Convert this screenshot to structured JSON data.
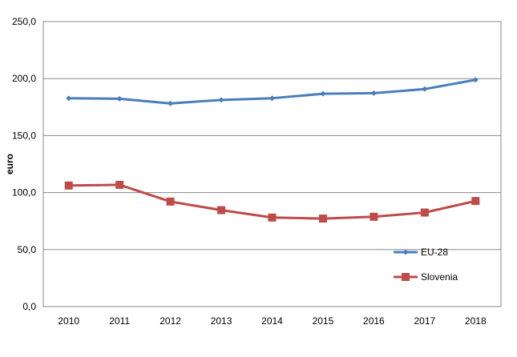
{
  "chart_data": {
    "type": "line",
    "title": "",
    "xlabel": "",
    "ylabel": "euro",
    "x": [
      "2010",
      "2011",
      "2012",
      "2013",
      "2014",
      "2015",
      "2016",
      "2017",
      "2018"
    ],
    "ylim": [
      0,
      250
    ],
    "yticks": [
      "0,0",
      "50,0",
      "100,0",
      "150,0",
      "200,0",
      "250,0"
    ],
    "grid": true,
    "legend_position": "lower-right",
    "series": [
      {
        "name": "EU-28",
        "color": "#4a7ebb",
        "marker": "diamond",
        "values": [
          182.8,
          182.3,
          178.2,
          181.3,
          182.8,
          186.7,
          187.2,
          190.8,
          198.9
        ]
      },
      {
        "name": "Slovenia",
        "color": "#be4b48",
        "marker": "square",
        "values": [
          106.2,
          106.8,
          92.1,
          84.6,
          78.1,
          77.2,
          78.8,
          82.5,
          92.6
        ]
      }
    ]
  }
}
